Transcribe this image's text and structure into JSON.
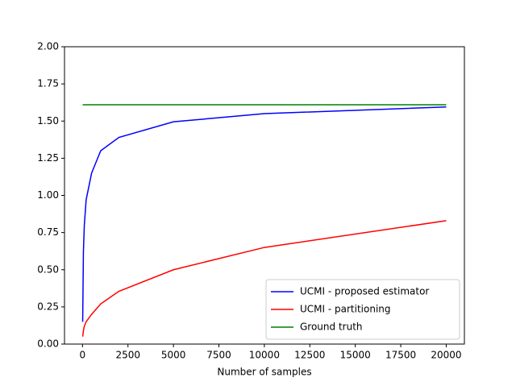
{
  "chart_data": {
    "type": "line",
    "xlabel": "Number of samples",
    "x": [
      10,
      50,
      100,
      200,
      500,
      1000,
      2000,
      5000,
      10000,
      20000
    ],
    "series": [
      {
        "name": "UCMI - proposed estimator",
        "color": "#0000ff",
        "values": [
          0.15,
          0.62,
          0.8,
          0.97,
          1.15,
          1.3,
          1.39,
          1.495,
          1.55,
          1.595
        ]
      },
      {
        "name": "UCMI - partitioning",
        "color": "#ff0000",
        "values": [
          0.05,
          0.09,
          0.12,
          0.15,
          0.2,
          0.27,
          0.355,
          0.5,
          0.65,
          0.83
        ]
      },
      {
        "name": "Ground truth",
        "color": "#008000",
        "values": [
          1.61,
          1.61,
          1.61,
          1.61,
          1.61,
          1.61,
          1.61,
          1.61,
          1.61,
          1.61
        ]
      }
    ],
    "xlim": [
      -990,
      21000
    ],
    "xticks": [
      0,
      2500,
      5000,
      7500,
      10000,
      12500,
      15000,
      17500,
      20000
    ],
    "ylim": [
      0,
      2
    ],
    "yticks": [
      {
        "value": 0,
        "label": "0.00"
      },
      {
        "value": 0.25,
        "label": "0.25"
      },
      {
        "value": 0.5,
        "label": "0.50"
      },
      {
        "value": 0.75,
        "label": "0.75"
      },
      {
        "value": 1,
        "label": "1.00"
      },
      {
        "value": 1.25,
        "label": "1.25"
      },
      {
        "value": 1.5,
        "label": "1.50"
      },
      {
        "value": 1.75,
        "label": "1.75"
      },
      {
        "value": 2,
        "label": "2.00"
      }
    ],
    "legend": "lower right"
  }
}
